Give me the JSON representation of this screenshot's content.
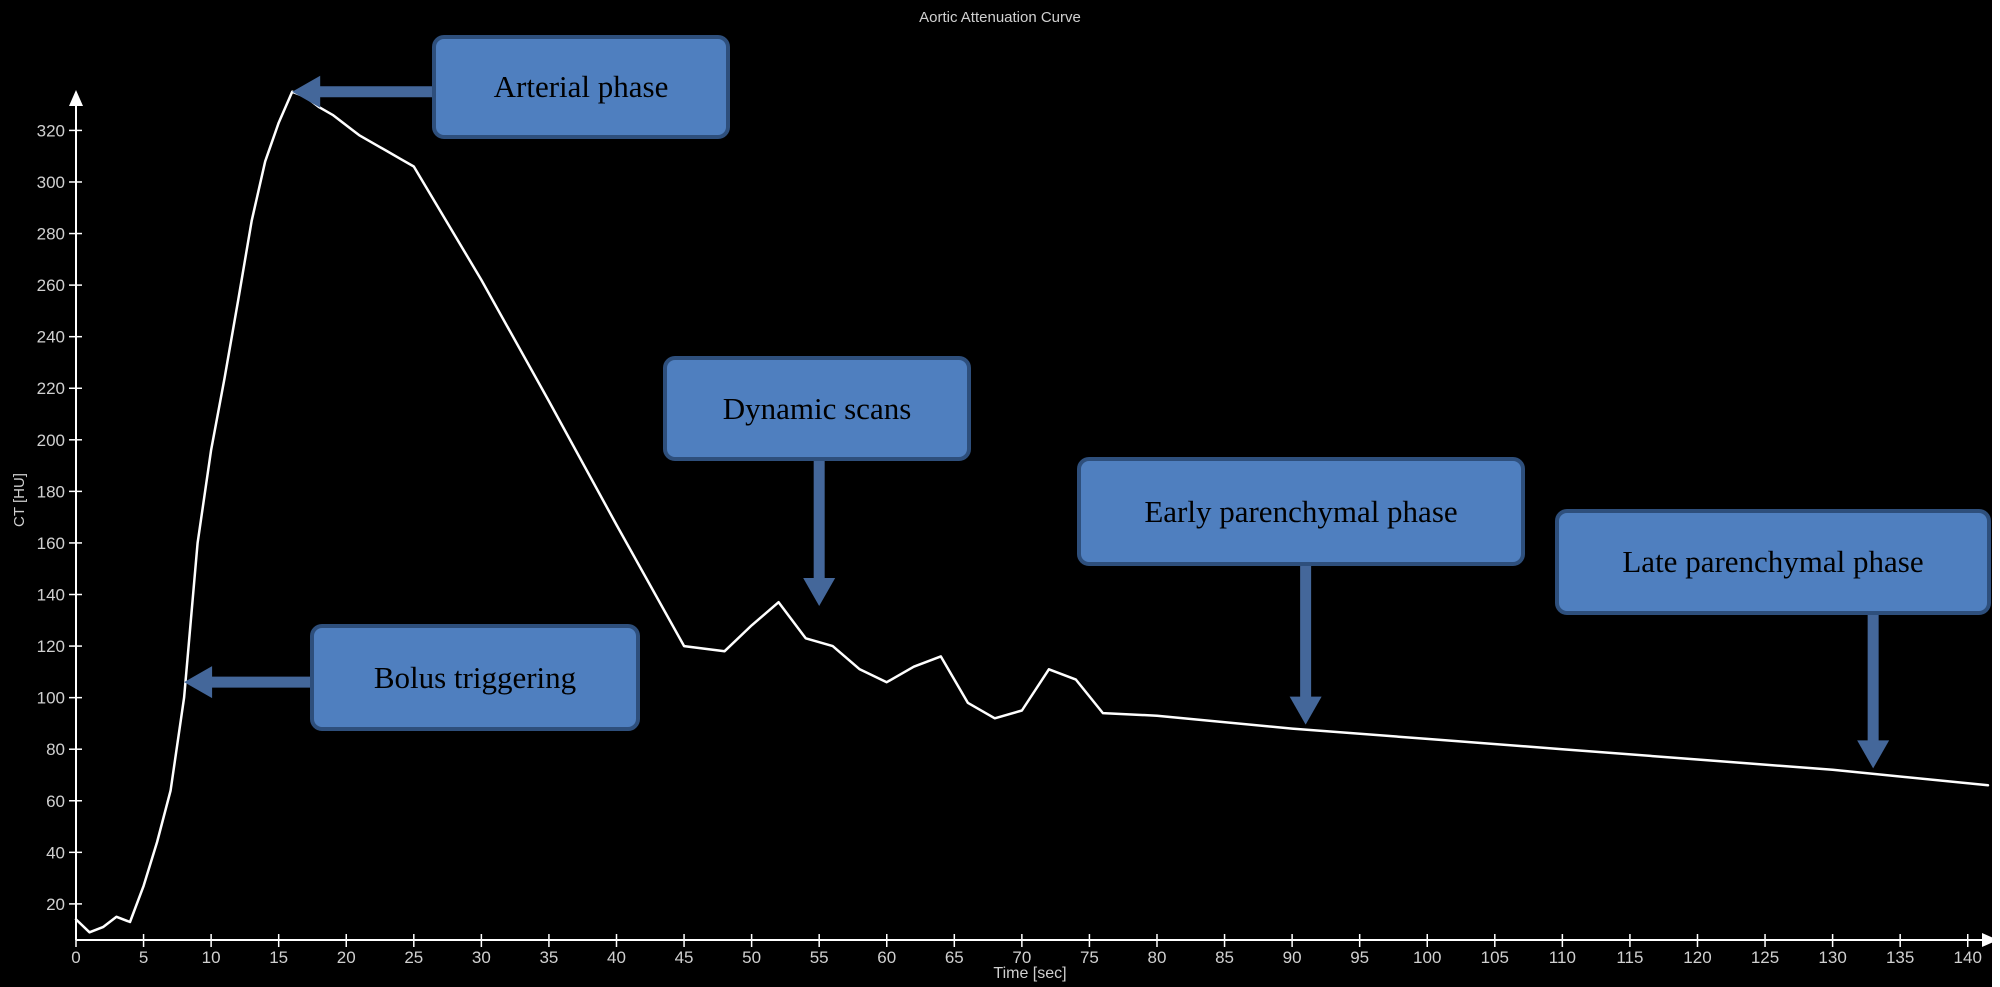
{
  "chart_data": {
    "type": "line",
    "title": "Aortic Attenuation Curve",
    "xlabel": "Time [sec]",
    "ylabel": "CT [HU]",
    "xlim": [
      0,
      141.5
    ],
    "ylim": [
      6,
      338
    ],
    "x_ticks": [
      0,
      5,
      10,
      15,
      20,
      25,
      30,
      35,
      40,
      45,
      50,
      55,
      60,
      65,
      70,
      75,
      80,
      85,
      90,
      95,
      100,
      105,
      110,
      115,
      120,
      125,
      130,
      135,
      140
    ],
    "y_ticks": [
      20,
      40,
      60,
      80,
      100,
      120,
      140,
      160,
      180,
      200,
      220,
      240,
      260,
      280,
      300,
      320
    ],
    "grid": false,
    "series": [
      {
        "x": [
          0,
          1,
          2,
          3,
          4,
          5,
          6,
          7,
          8,
          9,
          10,
          11,
          12,
          13,
          14,
          15,
          16,
          17,
          18,
          19,
          20,
          21,
          22,
          23,
          24,
          25,
          30,
          35,
          40,
          45,
          48,
          50,
          52,
          54,
          56,
          58,
          60,
          62,
          64,
          66,
          68,
          70,
          72,
          74,
          76,
          80,
          90,
          100,
          110,
          120,
          130,
          141.5
        ],
        "y": [
          14,
          9,
          11,
          15,
          13,
          27,
          44,
          64,
          100,
          160,
          196,
          224,
          254,
          285,
          308,
          323,
          335,
          333,
          329,
          326,
          322,
          318,
          315,
          312,
          309,
          306,
          262,
          215,
          167,
          120,
          118,
          128,
          137,
          123,
          120,
          111,
          106,
          112,
          116,
          98,
          92,
          95,
          111,
          107,
          94,
          93,
          88,
          84,
          80,
          76,
          72,
          66
        ]
      }
    ],
    "annotations": [
      {
        "text": "Arterial phase",
        "target": [
          16,
          335
        ],
        "arrow": "left"
      },
      {
        "text": "Bolus triggering",
        "target": [
          8,
          106
        ],
        "arrow": "left"
      },
      {
        "text": "Dynamic scans",
        "target": [
          55,
          134
        ],
        "arrow": "down"
      },
      {
        "text": "Early parenchymal phase",
        "target": [
          91,
          88
        ],
        "arrow": "down"
      },
      {
        "text": "Late parenchymal phase",
        "target": [
          133,
          71
        ],
        "arrow": "down"
      }
    ]
  },
  "colors": {
    "background": "#000000",
    "line": "#ffffff",
    "axis": "#ffffff",
    "tick_label": "#d0d0d0",
    "callout_fill": "#4f7fbf",
    "callout_border": "#2e4f7c",
    "arrow": "#44679a"
  }
}
